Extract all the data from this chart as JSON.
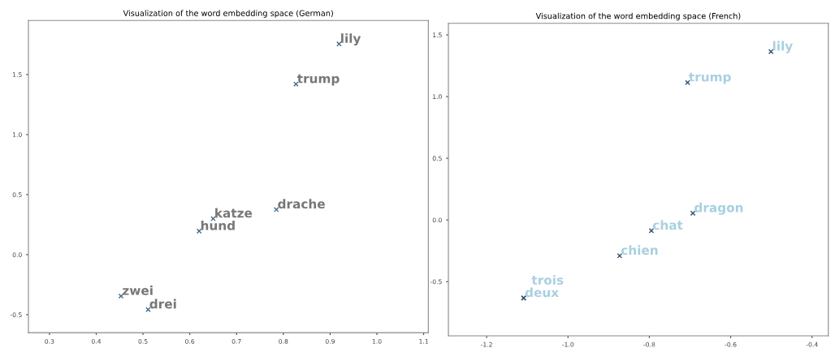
{
  "chart_data": [
    {
      "type": "scatter",
      "title": "Visualization of the word embedding space (German)",
      "marker": "cross",
      "grid": false,
      "x": [
        0.919,
        0.827,
        0.785,
        0.65,
        0.62,
        0.453,
        0.511
      ],
      "series": [
        {
          "color": "#3d6a8e",
          "values": [
            1.755,
            1.42,
            0.376,
            0.3,
            0.196,
            -0.345,
            -0.457
          ]
        }
      ],
      "xlim": [
        0.255,
        1.11
      ],
      "xticks": [
        {
          "value": 0.3,
          "label": "0.3"
        },
        {
          "value": 0.4,
          "label": "0.4"
        },
        {
          "value": 0.5,
          "label": "0.5"
        },
        {
          "value": 0.6,
          "label": "0.6"
        },
        {
          "value": 0.7,
          "label": "0.7"
        },
        {
          "value": 0.8,
          "label": "0.8"
        },
        {
          "value": 0.9,
          "label": "0.9"
        },
        {
          "value": 1.0,
          "label": "1.0"
        },
        {
          "value": 1.1,
          "label": "1.1"
        }
      ],
      "ylim": [
        -0.65,
        1.95
      ],
      "yticks": [
        {
          "value": -0.5,
          "label": "-0.5"
        },
        {
          "value": 0.0,
          "label": "0.0"
        },
        {
          "value": 0.5,
          "label": "0.5"
        },
        {
          "value": 1.0,
          "label": "1.0"
        },
        {
          "value": 1.5,
          "label": "1.5"
        }
      ],
      "annotations": [
        {
          "text": "lily",
          "x": 0.919,
          "y": 1.755
        },
        {
          "text": "trump",
          "x": 0.827,
          "y": 1.42
        },
        {
          "text": "drache",
          "x": 0.785,
          "y": 0.376
        },
        {
          "text": "katze",
          "x": 0.65,
          "y": 0.3
        },
        {
          "text": "hund",
          "x": 0.62,
          "y": 0.196
        },
        {
          "text": "zwei",
          "x": 0.453,
          "y": -0.345
        },
        {
          "text": "drei",
          "x": 0.511,
          "y": -0.457
        }
      ]
    },
    {
      "type": "scatter",
      "title": "Visualization of the word embedding space (French)",
      "marker": "cross",
      "grid": false,
      "x": [
        -0.501,
        -0.706,
        -0.693,
        -0.795,
        -0.873,
        -1.109,
        -1.109
      ],
      "series": [
        {
          "color": "#2f4f6f",
          "values": [
            1.365,
            1.114,
            0.055,
            -0.087,
            -0.29,
            -0.633,
            -0.633
          ]
        }
      ],
      "xlim": [
        -1.294,
        -0.36
      ],
      "xticks": [
        {
          "value": -1.2,
          "label": "-1.2"
        },
        {
          "value": -1.0,
          "label": "-1.0"
        },
        {
          "value": -0.8,
          "label": "-0.8"
        },
        {
          "value": -0.6,
          "label": "-0.6"
        },
        {
          "value": -0.4,
          "label": "-0.4"
        }
      ],
      "ylim": [
        -0.939,
        1.594
      ],
      "yticks": [
        {
          "value": -0.5,
          "label": "-0.5"
        },
        {
          "value": 0.0,
          "label": "0.0"
        },
        {
          "value": 0.5,
          "label": "0.5"
        },
        {
          "value": 1.0,
          "label": "1.0"
        },
        {
          "value": 1.5,
          "label": "1.5"
        }
      ],
      "annotations": [
        {
          "text": "lily",
          "x": -0.501,
          "y": 1.365
        },
        {
          "text": "trump",
          "x": -0.706,
          "y": 1.114
        },
        {
          "text": "dragon",
          "x": -0.693,
          "y": 0.055
        },
        {
          "text": "chat",
          "x": -0.795,
          "y": -0.087
        },
        {
          "text": "chien",
          "x": -0.873,
          "y": -0.29
        },
        {
          "text": "deux",
          "x": -1.109,
          "y": -0.633
        },
        {
          "text": "trois",
          "x": -1.109,
          "y": -0.633
        }
      ]
    }
  ]
}
